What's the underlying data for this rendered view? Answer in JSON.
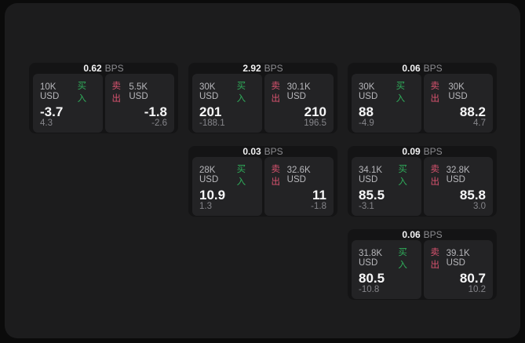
{
  "app": {
    "background": "#0b0b0b",
    "panel_bg": "#1c1c1d"
  },
  "labels": {
    "bps_unit": "BPS",
    "buy": "买入",
    "sell": "卖出"
  },
  "colors": {
    "buy_green": "#2fae5b",
    "sell_red": "#d8536f",
    "card_bg": "#141415",
    "tile_bg": "#232325"
  },
  "cards": [
    {
      "bps": "0.62",
      "row": 1,
      "col": 1,
      "buy": {
        "amount": "10K USD",
        "price": "-3.7",
        "delta": "4.3"
      },
      "sell": {
        "amount": "5.5K USD",
        "price": "-1.8",
        "delta": "-2.6"
      }
    },
    {
      "bps": "2.92",
      "row": 1,
      "col": 2,
      "buy": {
        "amount": "30K USD",
        "price": "201",
        "delta": "-188.1"
      },
      "sell": {
        "amount": "30.1K USD",
        "price": "210",
        "delta": "196.5"
      }
    },
    {
      "bps": "0.06",
      "row": 1,
      "col": 3,
      "buy": {
        "amount": "30K USD",
        "price": "88",
        "delta": "-4.9"
      },
      "sell": {
        "amount": "30K USD",
        "price": "88.2",
        "delta": "4.7"
      }
    },
    {
      "bps": "0.03",
      "row": 2,
      "col": 2,
      "buy": {
        "amount": "28K USD",
        "price": "10.9",
        "delta": "1.3"
      },
      "sell": {
        "amount": "32.6K USD",
        "price": "11",
        "delta": "-1.8"
      }
    },
    {
      "bps": "0.09",
      "row": 2,
      "col": 3,
      "buy": {
        "amount": "34.1K USD",
        "price": "85.5",
        "delta": "-3.1"
      },
      "sell": {
        "amount": "32.8K USD",
        "price": "85.8",
        "delta": "3.0"
      }
    },
    {
      "bps": "0.06",
      "row": 3,
      "col": 3,
      "buy": {
        "amount": "31.8K USD",
        "price": "80.5",
        "delta": "-10.8"
      },
      "sell": {
        "amount": "39.1K USD",
        "price": "80.7",
        "delta": "10.2"
      }
    }
  ]
}
